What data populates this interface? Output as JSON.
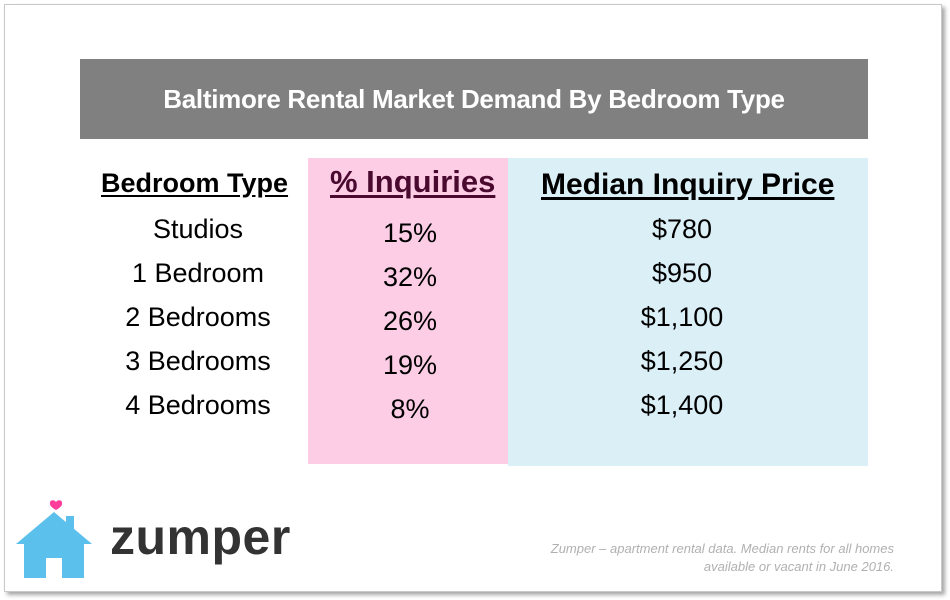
{
  "title": "Baltimore Rental Market Demand By Bedroom Type",
  "headers": {
    "bedroom_type": "Bedroom Type",
    "inquiries": "% Inquiries",
    "median_price": "Median Inquiry Price"
  },
  "rows": [
    {
      "type": "Studios",
      "inquiries": "15%",
      "price": "$780"
    },
    {
      "type": "1 Bedroom",
      "inquiries": "32%",
      "price": "$950"
    },
    {
      "type": "2 Bedrooms",
      "inquiries": "26%",
      "price": "$1,100"
    },
    {
      "type": "3 Bedrooms",
      "inquiries": "19%",
      "price": "$1,250"
    },
    {
      "type": "4 Bedrooms",
      "inquiries": "8%",
      "price": "$1,400"
    }
  ],
  "logo": {
    "text": "zumper",
    "icon": "house-heart-icon"
  },
  "footnote": {
    "line1": "Zumper – apartment rental data. Median rents for all homes",
    "line2": "available or vacant in June 2016."
  },
  "colors": {
    "title_bar": "#808080",
    "inquiries_column": "#fccde5",
    "price_column": "#dbeff7",
    "logo_house": "#5bc0eb",
    "logo_heart": "#ff3d9a"
  },
  "chart_data": {
    "type": "table",
    "title": "Baltimore Rental Market Demand By Bedroom Type",
    "columns": [
      "Bedroom Type",
      "% Inquiries",
      "Median Inquiry Price"
    ],
    "rows": [
      [
        "Studios",
        "15%",
        "$780"
      ],
      [
        "1 Bedroom",
        "32%",
        "$950"
      ],
      [
        "2 Bedrooms",
        "26%",
        "$1,100"
      ],
      [
        "3 Bedrooms",
        "19%",
        "$1,250"
      ],
      [
        "4 Bedrooms",
        "8%",
        "$1,400"
      ]
    ]
  }
}
